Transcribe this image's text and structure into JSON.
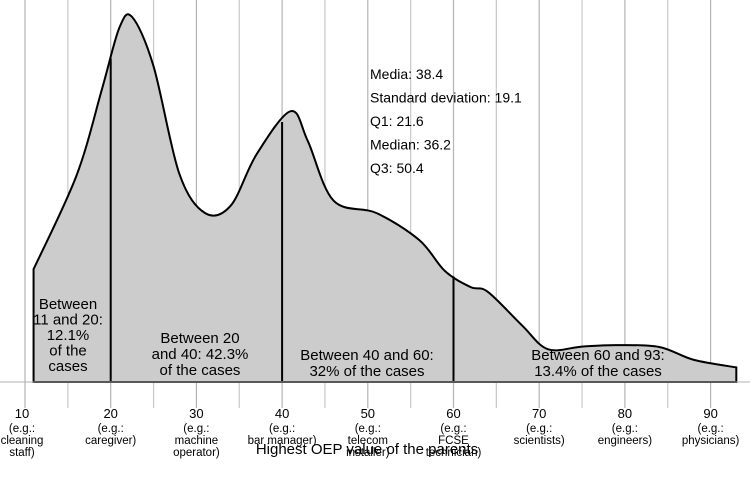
{
  "chart_data": {
    "type": "area",
    "xlabel": "Highest OEP value of the parents",
    "xlim": [
      10,
      93
    ],
    "x_ticks": [
      {
        "value": 10,
        "label": "10",
        "example": [
          "(e.g.:",
          "cleaning",
          "staff)"
        ]
      },
      {
        "value": 20,
        "label": "20",
        "example": [
          "(e.g.:",
          "caregiver)"
        ]
      },
      {
        "value": 30,
        "label": "30",
        "example": [
          "(e.g.:",
          "machine",
          "operator)"
        ]
      },
      {
        "value": 40,
        "label": "40",
        "example": [
          "(e.g.:",
          "bar manager)"
        ]
      },
      {
        "value": 50,
        "label": "50",
        "example": [
          "(e.g.:",
          "telecom",
          "installer)"
        ]
      },
      {
        "value": 60,
        "label": "60",
        "example": [
          "(e.g.:",
          "FCSE",
          "technician)"
        ]
      },
      {
        "value": 70,
        "label": "70",
        "example": [
          "(e.g.:",
          "scientists)"
        ]
      },
      {
        "value": 80,
        "label": "80",
        "example": [
          "(e.g.:",
          "engineers)"
        ]
      },
      {
        "value": 90,
        "label": "90",
        "example": [
          "(e.g.:",
          "physicians)"
        ]
      }
    ],
    "grid": {
      "vertical": true,
      "horizontal": false
    },
    "density_points": [
      [
        11,
        0.309
      ],
      [
        16,
        0.565
      ],
      [
        19,
        0.804
      ],
      [
        21,
        0.97
      ],
      [
        22.5,
        1.0
      ],
      [
        25,
        0.865
      ],
      [
        28,
        0.571
      ],
      [
        31,
        0.463
      ],
      [
        34,
        0.483
      ],
      [
        37,
        0.623
      ],
      [
        41,
        0.742
      ],
      [
        43,
        0.66
      ],
      [
        46,
        0.497
      ],
      [
        51,
        0.463
      ],
      [
        56,
        0.389
      ],
      [
        59,
        0.304
      ],
      [
        62,
        0.26
      ],
      [
        64,
        0.247
      ],
      [
        68,
        0.155
      ],
      [
        71,
        0.09
      ],
      [
        75,
        0.097
      ],
      [
        79,
        0.101
      ],
      [
        84,
        0.096
      ],
      [
        88,
        0.061
      ],
      [
        93,
        0.04
      ]
    ],
    "dividers": [
      20,
      40,
      60
    ],
    "regions": [
      {
        "lines": [
          "Between",
          "11 and 20:",
          "12.1%",
          "of the",
          "cases"
        ],
        "percent": 12.1
      },
      {
        "lines": [
          "Between 20",
          "and 40: 42.3%",
          "of the cases"
        ],
        "percent": 42.3
      },
      {
        "lines": [
          "Between 40 and 60:",
          "32% of the cases"
        ],
        "percent": 32
      },
      {
        "lines": [
          "Between 60 and 93:",
          "13.4% of the cases"
        ],
        "percent": 13.4
      }
    ],
    "stats": [
      {
        "label": "Media",
        "value": 38.4,
        "text": "Media: 38.4"
      },
      {
        "label": "Standard deviation",
        "value": 19.1,
        "text": "Standard deviation: 19.1"
      },
      {
        "label": "Q1",
        "value": 21.6,
        "text": "Q1: 21.6"
      },
      {
        "label": "Median",
        "value": 36.2,
        "text": "Median: 36.2"
      },
      {
        "label": "Q3",
        "value": 50.4,
        "text": "Q3: 50.4"
      }
    ],
    "colors": {
      "fill": "#cccccc",
      "stroke": "#000000",
      "grid": "#c8c8c8",
      "axis": "#b4b4b4"
    }
  }
}
